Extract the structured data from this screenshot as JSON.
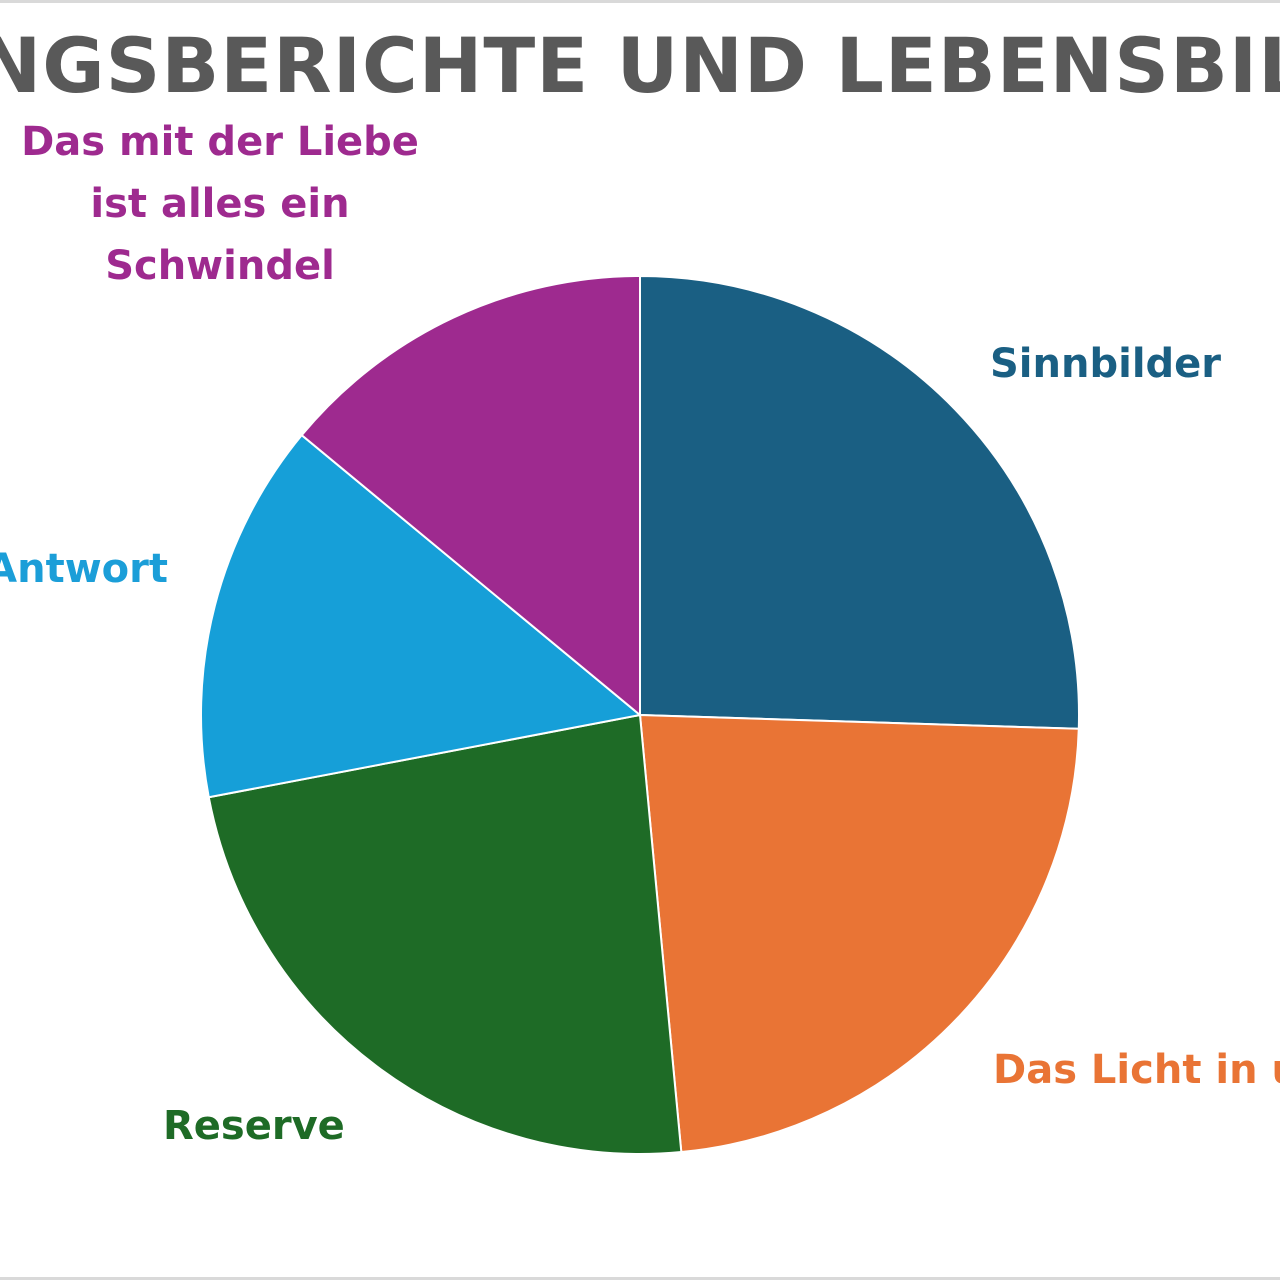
{
  "chart_data": {
    "type": "pie",
    "title": "RUNGSBERICHTE UND LEBENSBILDE",
    "slices": [
      {
        "label": "Sinnbilder",
        "value": 25.5,
        "color": "#1a5f83"
      },
      {
        "label": "Das Licht in u",
        "value": 23.0,
        "color": "#e97435"
      },
      {
        "label": "Reserve",
        "value": 23.5,
        "color": "#1e6b26"
      },
      {
        "label": "eben ist Antwort",
        "value": 14.0,
        "color": "#169fd8"
      },
      {
        "label": "Das mit der Liebe ist alles ein Schwindel",
        "value": 14.0,
        "color": "#9e2a8f"
      }
    ],
    "legend": "none",
    "data_labels": "category names outside slices"
  },
  "labels": {
    "purple": "Das mit der Liebe ist alles ein Schwindel",
    "blue": "Sinnbilder",
    "cyan": "eben ist Antwort",
    "orange": "Das Licht in u",
    "green": "Reserve"
  }
}
